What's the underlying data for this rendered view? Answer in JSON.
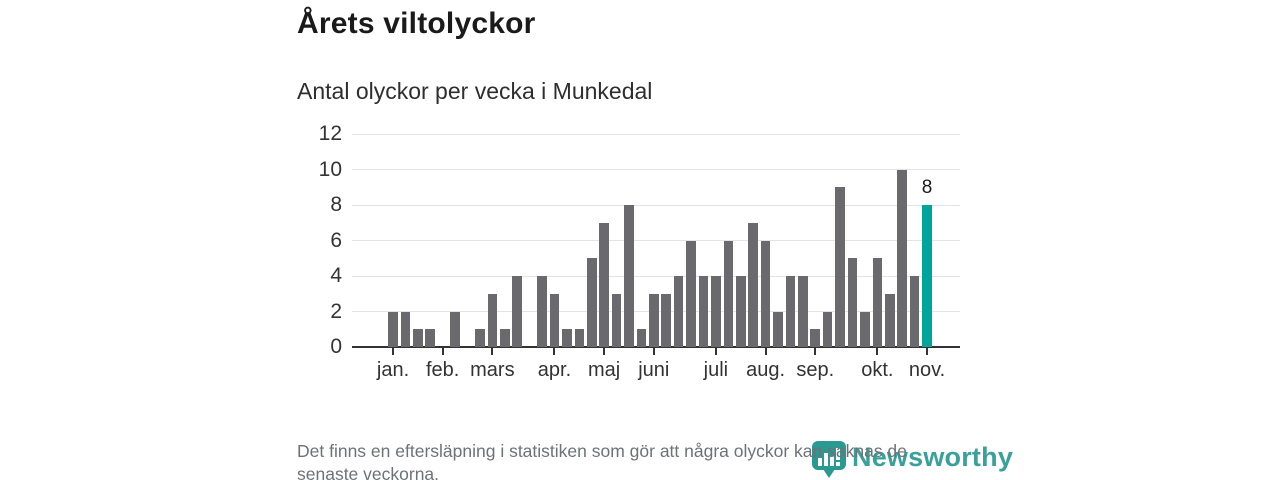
{
  "header": {
    "title": "Årets viltolyckor",
    "subtitle": "Antal olyckor per vecka i Munkedal"
  },
  "chart_data": {
    "type": "bar",
    "title": "Årets viltolyckor",
    "subtitle": "Antal olyckor per vecka i Munkedal",
    "x_unit": "vecka (week of year)",
    "values": [
      2,
      2,
      1,
      1,
      0,
      2,
      0,
      1,
      3,
      1,
      4,
      0,
      4,
      3,
      1,
      1,
      5,
      7,
      3,
      8,
      1,
      3,
      3,
      4,
      6,
      4,
      4,
      6,
      4,
      7,
      6,
      2,
      4,
      4,
      1,
      2,
      9,
      5,
      2,
      5,
      3,
      10,
      4,
      8
    ],
    "ylim": [
      0,
      12
    ],
    "y_ticks": [
      0,
      2,
      4,
      6,
      8,
      10,
      12
    ],
    "x_ticks": [
      {
        "label": "jan.",
        "week": 1
      },
      {
        "label": "feb.",
        "week": 5
      },
      {
        "label": "mars",
        "week": 9
      },
      {
        "label": "apr.",
        "week": 14
      },
      {
        "label": "maj",
        "week": 18
      },
      {
        "label": "juni",
        "week": 22
      },
      {
        "label": "juli",
        "week": 27
      },
      {
        "label": "aug.",
        "week": 31
      },
      {
        "label": "sep.",
        "week": 35
      },
      {
        "label": "okt.",
        "week": 40
      },
      {
        "label": "nov.",
        "week": 44
      }
    ],
    "highlight": {
      "week": 44,
      "value": 8,
      "label": "8"
    },
    "grid": "horizontal",
    "legend": "none"
  },
  "footer": {
    "disclaimer_line1": "Det finns en eftersläpning i statistiken som gör att några olyckor kan saknas de",
    "disclaimer_line2": "senaste veckorna."
  },
  "branding": {
    "logo_text": "Newsworthy",
    "logo_icon": "bar-chart-pin-icon"
  },
  "colors": {
    "bar": "#6a6a6e",
    "accent": "#00a49b",
    "axis": "#333333",
    "grid": "#e4e4e4",
    "title": "#1a1a1a",
    "subtitle": "#2e2e2e",
    "tick_label": "#333333",
    "footer": "#6e7276",
    "brand": "#2a9992"
  }
}
